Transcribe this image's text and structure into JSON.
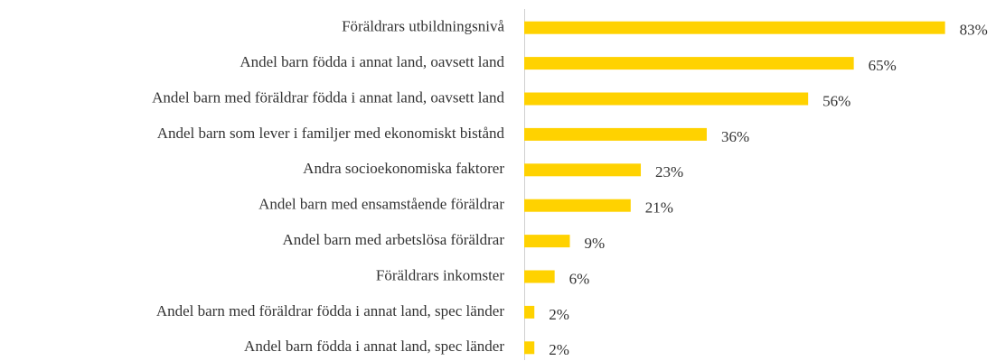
{
  "chart_data": {
    "type": "bar",
    "orientation": "horizontal",
    "categories": [
      "Föräldrars utbildningsnivå",
      "Andel barn födda i annat land, oavsett land",
      "Andel barn med föräldrar födda i annat land, oavsett land",
      "Andel barn som lever i familjer med ekonomiskt bistånd",
      "Andra socioekonomiska faktorer",
      "Andel barn med ensamstående föräldrar",
      "Andel barn med arbetslösa föräldrar",
      "Föräldrars inkomster",
      "Andel barn med föräldrar födda i annat land, spec länder",
      "Andel barn födda i annat land, spec länder"
    ],
    "values": [
      83,
      65,
      56,
      36,
      23,
      21,
      9,
      6,
      2,
      2
    ],
    "value_labels": [
      "83%",
      "65%",
      "56%",
      "36%",
      "23%",
      "21%",
      "9%",
      "6%",
      "2%",
      "2%"
    ],
    "color": "#ffd200",
    "xlim": [
      0,
      100
    ]
  }
}
